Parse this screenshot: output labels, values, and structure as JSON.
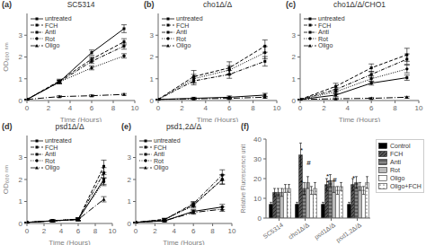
{
  "chart_data": [
    {
      "type": "line",
      "label": "(a)",
      "title": "SC5314",
      "x_label": "Time (Hours)",
      "y_label": "OD₆₀₀ ₙₘ",
      "x": [
        0,
        3,
        6,
        9
      ],
      "xlim": [
        0,
        10
      ],
      "xticks": [
        0,
        2,
        4,
        6,
        8,
        10
      ],
      "ylim": [
        0,
        4
      ],
      "yticks": [
        0,
        1,
        2,
        3
      ],
      "legend": "upper left",
      "series": [
        {
          "name": "untreated",
          "color": "black",
          "marker": "square",
          "line_style": "solid",
          "values": [
            0.05,
            0.85,
            2.2,
            3.3
          ],
          "errors": [
            0.01,
            0.08,
            0.12,
            0.18
          ]
        },
        {
          "name": "FCH",
          "color": "black",
          "marker": "square",
          "line_style": "dashed",
          "values": [
            0.05,
            0.9,
            1.9,
            2.7
          ],
          "errors": [
            0.01,
            0.08,
            0.1,
            0.14
          ]
        },
        {
          "name": "Anti",
          "color": "black",
          "marker": "square",
          "line_style": "dashdot",
          "values": [
            0.05,
            0.85,
            1.8,
            2.5
          ],
          "errors": [
            0.01,
            0.08,
            0.1,
            0.14
          ]
        },
        {
          "name": "Rot",
          "color": "black",
          "marker": "circle",
          "line_style": "dotted",
          "values": [
            0.05,
            0.85,
            1.5,
            2.05
          ],
          "errors": [
            0.01,
            0.06,
            0.09,
            0.1
          ]
        },
        {
          "name": "Oligo",
          "color": "black",
          "marker": "triangle",
          "line_style": "long_dashdot",
          "values": [
            0.05,
            0.18,
            0.22,
            0.28
          ],
          "errors": [
            0.01,
            0.04,
            0.04,
            0.04
          ]
        }
      ]
    },
    {
      "type": "line",
      "label": "(b)",
      "title": "cho1Δ/Δ",
      "x_label": "Time (Hours)",
      "x": [
        0,
        3,
        6,
        9
      ],
      "xlim": [
        0,
        10
      ],
      "xticks": [
        0,
        2,
        4,
        6,
        8,
        10
      ],
      "ylim": [
        0,
        4
      ],
      "yticks": [
        0,
        1,
        2,
        3
      ],
      "legend": "upper left",
      "series": [
        {
          "name": "untreated",
          "color": "black",
          "marker": "square",
          "line_style": "solid",
          "values": [
            0.05,
            0.1,
            0.15,
            0.25
          ],
          "errors": [
            0.01,
            0.05,
            0.06,
            0.08
          ]
        },
        {
          "name": "FCH",
          "color": "black",
          "marker": "square",
          "line_style": "dashed",
          "values": [
            0.05,
            1.1,
            1.5,
            2.5
          ],
          "errors": [
            0.01,
            0.28,
            0.28,
            0.28
          ]
        },
        {
          "name": "Anti",
          "color": "black",
          "marker": "square",
          "line_style": "dashdot",
          "values": [
            0.05,
            0.9,
            1.2,
            1.8
          ],
          "errors": [
            0.01,
            0.18,
            0.18,
            0.22
          ]
        },
        {
          "name": "Rot",
          "color": "black",
          "marker": "circle",
          "line_style": "dotted",
          "values": [
            0.05,
            1.0,
            1.4,
            2.2
          ],
          "errors": [
            0.01,
            0.2,
            0.2,
            0.28
          ]
        },
        {
          "name": "Oligo",
          "color": "black",
          "marker": "triangle",
          "line_style": "long_dashdot",
          "values": [
            0.05,
            0.08,
            0.1,
            0.15
          ],
          "errors": [
            0.01,
            0.04,
            0.04,
            0.04
          ]
        }
      ]
    },
    {
      "type": "line",
      "label": "(c)",
      "title": "cho1Δ/Δ/CHO1",
      "x_label": "Time (Hours)",
      "x": [
        0,
        3,
        6,
        9
      ],
      "xlim": [
        0,
        10
      ],
      "xticks": [
        0,
        2,
        4,
        6,
        8,
        10
      ],
      "ylim": [
        0,
        4
      ],
      "yticks": [
        0,
        1,
        2,
        3
      ],
      "legend": "upper left",
      "series": [
        {
          "name": "untreated",
          "color": "black",
          "marker": "square",
          "line_style": "solid",
          "values": [
            0.05,
            0.25,
            0.8,
            1.05
          ],
          "errors": [
            0.01,
            0.07,
            0.09,
            0.12
          ]
        },
        {
          "name": "FCH",
          "color": "black",
          "marker": "square",
          "line_style": "dashed",
          "values": [
            0.05,
            0.65,
            1.5,
            2.1
          ],
          "errors": [
            0.01,
            0.14,
            0.18,
            0.3
          ]
        },
        {
          "name": "Anti",
          "color": "black",
          "marker": "square",
          "line_style": "dashdot",
          "values": [
            0.05,
            0.5,
            1.2,
            1.9
          ],
          "errors": [
            0.01,
            0.1,
            0.14,
            0.24
          ]
        },
        {
          "name": "Rot",
          "color": "black",
          "marker": "circle",
          "line_style": "dotted",
          "values": [
            0.05,
            0.4,
            1.0,
            1.45
          ],
          "errors": [
            0.01,
            0.09,
            0.13,
            0.18
          ]
        },
        {
          "name": "Oligo",
          "color": "black",
          "marker": "triangle",
          "line_style": "long_dashdot",
          "values": [
            0.05,
            0.08,
            0.1,
            0.15
          ],
          "errors": [
            0.01,
            0.04,
            0.04,
            0.04
          ]
        }
      ]
    },
    {
      "type": "line",
      "label": "(d)",
      "title": "psd1Δ/Δ",
      "x_label": "Time (Hours)",
      "y_label": "OD₆₀₀ ₙₘ",
      "x": [
        0,
        3,
        6,
        9
      ],
      "xlim": [
        0,
        10
      ],
      "xticks": [
        0,
        2,
        4,
        6,
        8,
        10
      ],
      "ylim": [
        0,
        4
      ],
      "yticks": [
        0,
        1,
        2,
        3
      ],
      "legend": "upper left",
      "series": [
        {
          "name": "untreated",
          "color": "black",
          "marker": "square",
          "line_style": "solid",
          "values": [
            0.05,
            0.12,
            0.18,
            2.0
          ],
          "errors": [
            0.01,
            0.04,
            0.06,
            0.22
          ]
        },
        {
          "name": "FCH",
          "color": "black",
          "marker": "square",
          "line_style": "dashed",
          "values": [
            0.05,
            0.12,
            0.18,
            2.6
          ],
          "errors": [
            0.01,
            0.04,
            0.06,
            0.28
          ]
        },
        {
          "name": "Anti",
          "color": "black",
          "marker": "square",
          "line_style": "dashdot",
          "values": [
            0.05,
            0.12,
            0.2,
            2.3
          ],
          "errors": [
            0.01,
            0.04,
            0.06,
            0.24
          ]
        },
        {
          "name": "Rot",
          "color": "black",
          "marker": "circle",
          "line_style": "dotted",
          "values": [
            0.05,
            0.12,
            0.2,
            1.9
          ],
          "errors": [
            0.01,
            0.04,
            0.06,
            0.18
          ]
        },
        {
          "name": "Oligo",
          "color": "black",
          "marker": "triangle",
          "line_style": "long_dashdot",
          "values": [
            0.05,
            0.12,
            0.18,
            1.1
          ],
          "errors": [
            0.01,
            0.04,
            0.06,
            0.12
          ]
        }
      ]
    },
    {
      "type": "line",
      "label": "(e)",
      "title": "psd1,2Δ/Δ",
      "x_label": "Time (Hours)",
      "x": [
        0,
        3,
        6,
        9
      ],
      "xlim": [
        0,
        10
      ],
      "xticks": [
        0,
        2,
        4,
        6,
        8,
        10
      ],
      "ylim": [
        0,
        4
      ],
      "yticks": [
        0,
        1,
        2,
        3
      ],
      "legend": "upper left",
      "series": [
        {
          "name": "untreated",
          "color": "black",
          "marker": "square",
          "line_style": "solid",
          "values": [
            0.05,
            0.12,
            0.55,
            0.75
          ],
          "errors": [
            0.01,
            0.04,
            0.08,
            0.12
          ]
        },
        {
          "name": "FCH",
          "color": "black",
          "marker": "square",
          "line_style": "dashed",
          "values": [
            0.05,
            0.18,
            0.85,
            2.0
          ],
          "errors": [
            0.01,
            0.05,
            0.1,
            0.22
          ]
        },
        {
          "name": "Anti",
          "color": "black",
          "marker": "square",
          "line_style": "dashdot",
          "values": [
            0.05,
            0.18,
            0.9,
            2.2
          ],
          "errors": [
            0.01,
            0.05,
            0.1,
            0.24
          ]
        },
        {
          "name": "Rot",
          "color": "black",
          "marker": "circle",
          "line_style": "dotted",
          "values": [
            0.05,
            0.18,
            0.8,
            2.0
          ],
          "errors": [
            0.01,
            0.05,
            0.1,
            0.2
          ]
        },
        {
          "name": "Oligo",
          "color": "black",
          "marker": "triangle",
          "line_style": "long_dashdot",
          "values": [
            0.05,
            0.12,
            0.5,
            0.65
          ],
          "errors": [
            0.01,
            0.04,
            0.08,
            0.1
          ]
        }
      ]
    },
    {
      "type": "bar",
      "label": "(f)",
      "y_label": "Relative Fluorescence unit",
      "categories": [
        "SC5314",
        "cho1Δ/Δ",
        "psd1Δ/Δ",
        "psd1,2Δ/Δ"
      ],
      "ylim": [
        0,
        40
      ],
      "yticks": [
        0,
        10,
        20,
        30,
        40
      ],
      "legend": "right",
      "series": [
        {
          "name": "Control",
          "color": "black",
          "values": [
            7,
            7,
            7,
            7
          ],
          "errors": [
            1,
            1,
            1,
            1
          ]
        },
        {
          "name": "FCH",
          "color": "#555555",
          "values": [
            13,
            32,
            17,
            17
          ],
          "errors": [
            2,
            6,
            3,
            3
          ]
        },
        {
          "name": "Anti",
          "color": "#888888",
          "values": [
            13,
            15,
            19,
            18
          ],
          "errors": [
            2,
            3,
            3,
            3
          ]
        },
        {
          "name": "Rot",
          "color": "#bbbbbb",
          "values": [
            13,
            18,
            16,
            16
          ],
          "errors": [
            2,
            3,
            3,
            2
          ]
        },
        {
          "name": "Oligo",
          "color": "white",
          "values": [
            15,
            14,
            14,
            14
          ],
          "errors": [
            2,
            2,
            2,
            2
          ]
        },
        {
          "name": "Oligo+FCH",
          "color": "white",
          "values": [
            15,
            15,
            16,
            18
          ],
          "errors": [
            2,
            3,
            2,
            3
          ]
        }
      ],
      "annotations": [
        {
          "text": "*",
          "category": "cho1Δ/Δ",
          "y": 33
        },
        {
          "text": "*",
          "category": "cho1Δ/Δ",
          "y": 17
        },
        {
          "text": "*",
          "category": "psd1Δ/Δ",
          "y": 20
        },
        {
          "text": "*",
          "category": "psd1Δ/Δ",
          "y": 17
        },
        {
          "text": "*",
          "category": "psd1,2Δ/Δ",
          "y": 19
        },
        {
          "text": "#",
          "category": "cho1Δ/Δ",
          "y": 27
        },
        {
          "text": "#",
          "category": "psd1Δ/Δ",
          "y": 18
        }
      ]
    }
  ]
}
